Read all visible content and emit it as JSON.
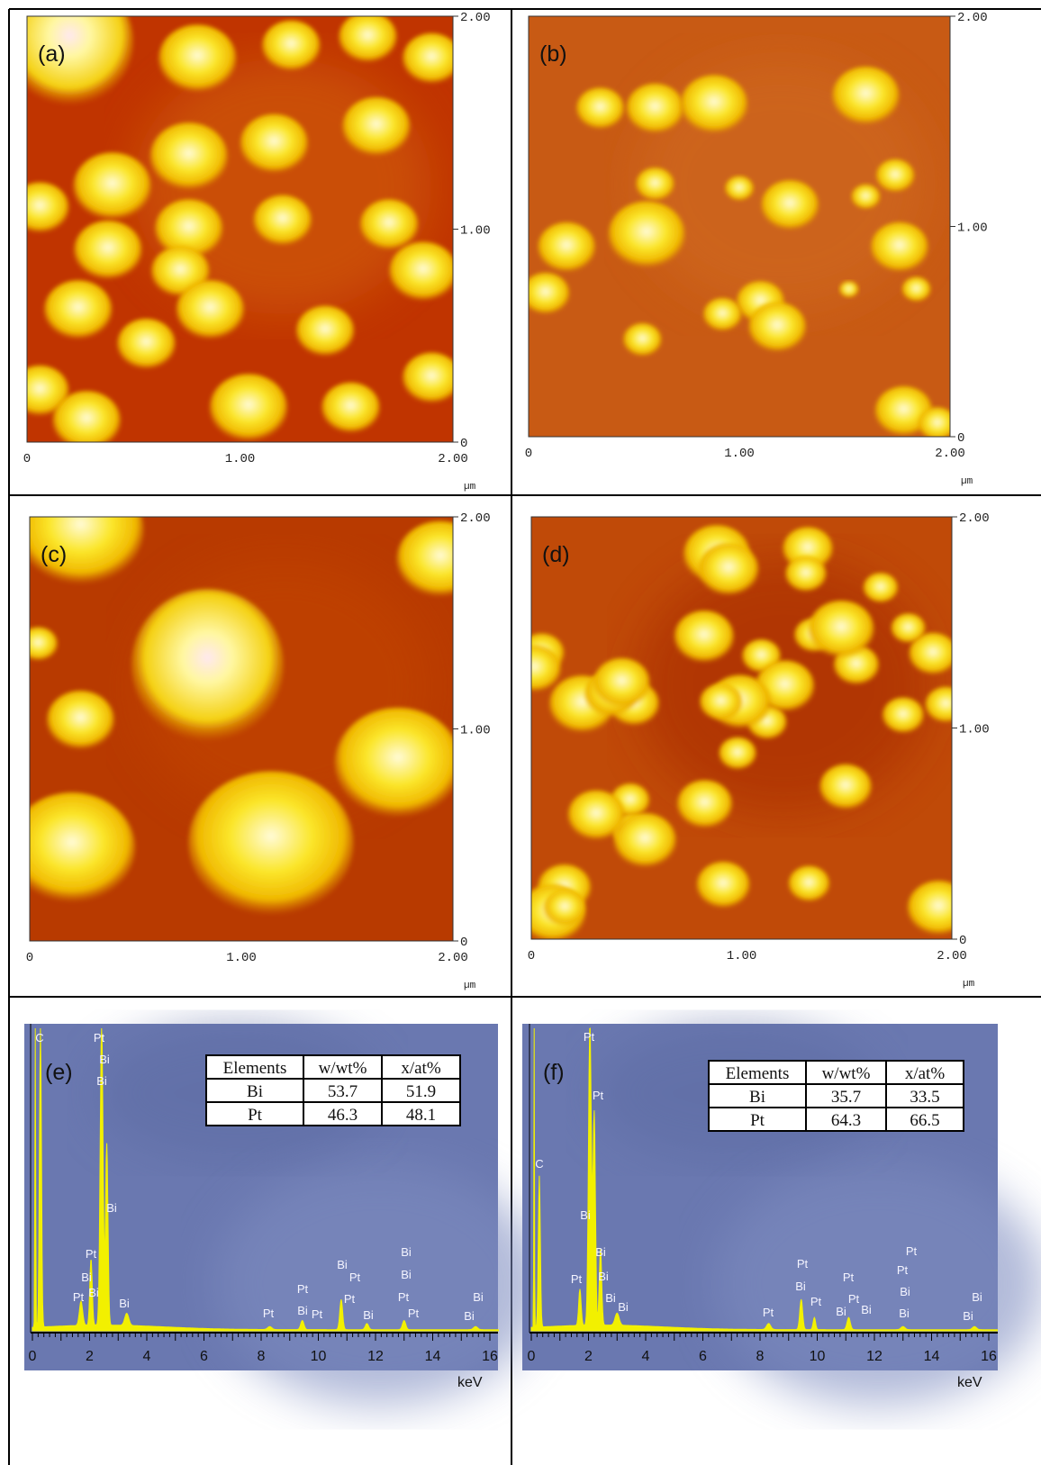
{
  "afm_panels": [
    {
      "label": "(a)",
      "y_ticks": [
        "2.00",
        "1.00",
        "0"
      ],
      "x_ticks": [
        "0",
        "1.00",
        "2.00"
      ],
      "unit": "µm"
    },
    {
      "label": "(b)",
      "y_ticks": [
        "2.00",
        "1.00",
        "0"
      ],
      "x_ticks": [
        "0",
        "1.00",
        "2.00"
      ],
      "unit": "µm"
    },
    {
      "label": "(c)",
      "y_ticks": [
        "2.00",
        "1.00",
        "0"
      ],
      "x_ticks": [
        "0",
        "1.00",
        "2.00"
      ],
      "unit": "µm"
    },
    {
      "label": "(d)",
      "y_ticks": [
        "2.00",
        "1.00",
        "0"
      ],
      "x_ticks": [
        "0",
        "1.00",
        "2.00"
      ],
      "unit": "µm"
    }
  ],
  "eds_panels": [
    {
      "label": "(e)",
      "table": {
        "header": [
          "Elements",
          "w/wt%",
          "x/at%"
        ],
        "rows": [
          [
            "Bi",
            "53.7",
            "51.9"
          ],
          [
            "Pt",
            "46.3",
            "48.1"
          ]
        ]
      },
      "x_ticks": [
        "0",
        "2",
        "4",
        "6",
        "8",
        "10",
        "12",
        "14",
        "16"
      ],
      "unit": "keV",
      "peak_labels": [
        "C",
        "Pt",
        "Bi",
        "Bi",
        "Bi",
        "Pt",
        "Bi",
        "Pt",
        "Bi",
        "Bi",
        "Pt",
        "Pt",
        "Bi",
        "Pt",
        "Bi",
        "Pt",
        "Pt",
        "Bi",
        "Bi",
        "Bi",
        "Pt",
        "Pt",
        "Bi",
        "Bi"
      ]
    },
    {
      "label": "(f)",
      "table": {
        "header": [
          "Elements",
          "w/wt%",
          "x/at%"
        ],
        "rows": [
          [
            "Bi",
            "35.7",
            "33.5"
          ],
          [
            "Pt",
            "64.3",
            "66.5"
          ]
        ]
      },
      "x_ticks": [
        "0",
        "2",
        "4",
        "6",
        "8",
        "10",
        "12",
        "14",
        "16"
      ],
      "unit": "keV",
      "peak_labels": [
        "Pt",
        "Pt",
        "C",
        "Bi",
        "Bi",
        "Pt",
        "Bi",
        "Bi",
        "Bi",
        "Pt",
        "Pt",
        "Bi",
        "Pt",
        "Pt",
        "Pt",
        "Bi",
        "Bi",
        "Pt",
        "Pt",
        "Bi",
        "Bi",
        "Bi",
        "Bi"
      ]
    }
  ]
}
